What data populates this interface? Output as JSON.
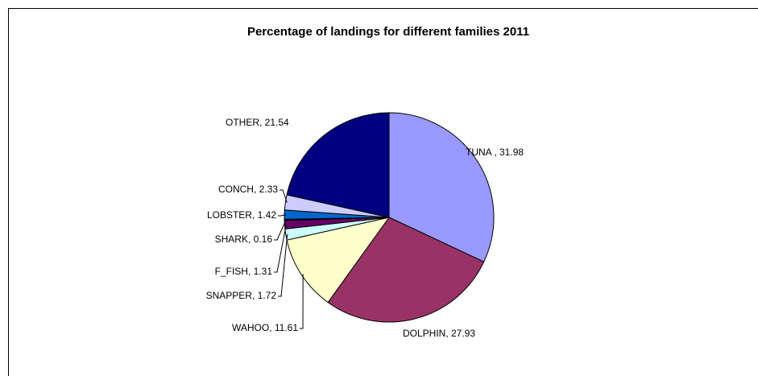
{
  "chart_data": {
    "type": "pie",
    "title": "Percentage of landings for different families 2011",
    "values": [
      31.98,
      27.93,
      11.61,
      1.72,
      1.31,
      0.16,
      1.42,
      2.33,
      21.54
    ],
    "value_labels": [
      "TUNA , 31.98",
      "DOLPHIN, 27.93",
      "WAHOO, 11.61",
      "SNAPPER, 1.72",
      "F_FISH, 1.31",
      "SHARK, 0.16",
      "LOBSTER, 1.42",
      "CONCH, 2.33",
      "OTHER, 21.54"
    ],
    "colors": [
      "#9999ff",
      "#993366",
      "#ffffcc",
      "#ccffff",
      "#660066",
      "#ff8080",
      "#0066cc",
      "#ccccff",
      "#000080"
    ]
  }
}
